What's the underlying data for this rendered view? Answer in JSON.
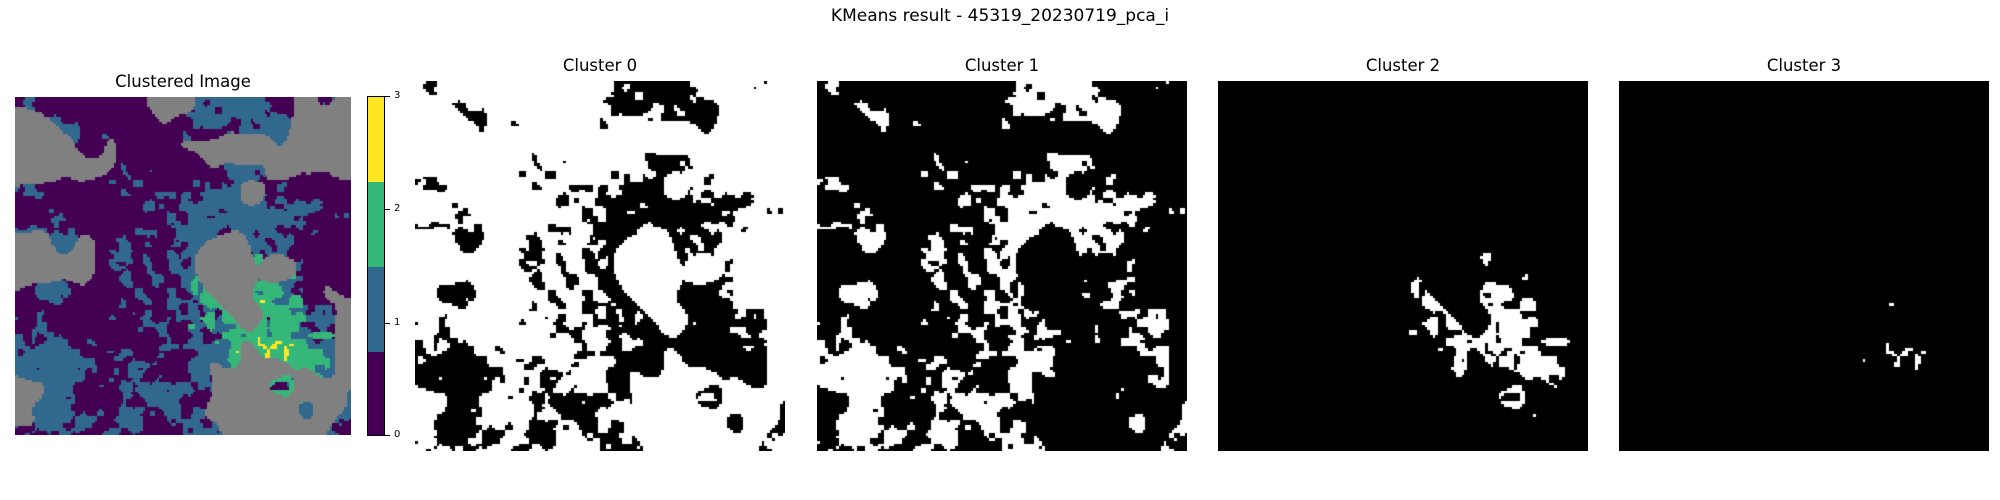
{
  "figure": {
    "suptitle": "KMeans result - 45319_20230719_pca_i"
  },
  "chart_data": {
    "type": "heatmap",
    "title": "KMeans result - 45319_20230719_pca_i",
    "panels": [
      {
        "title": "Clustered Image",
        "kind": "cluster-map",
        "colormap": "viridis-discrete"
      },
      {
        "title": "Cluster 0",
        "kind": "binary-mask",
        "cluster": 0
      },
      {
        "title": "Cluster 1",
        "kind": "binary-mask",
        "cluster": 1
      },
      {
        "title": "Cluster 2",
        "kind": "binary-mask",
        "cluster": 2
      },
      {
        "title": "Cluster 3",
        "kind": "binary-mask",
        "cluster": 3
      }
    ],
    "colorbar": {
      "ticks": [
        "0",
        "1",
        "2",
        "3"
      ],
      "range": [
        0,
        3
      ],
      "levels": [
        {
          "cluster": 0,
          "color": "#440154"
        },
        {
          "cluster": 1,
          "color": "#31688e"
        },
        {
          "cluster": 2,
          "color": "#35b779"
        },
        {
          "cluster": 3,
          "color": "#fde725"
        }
      ]
    },
    "nodata_color": "#808080",
    "mask_colors": {
      "member": "#ffffff",
      "other": "#000000"
    }
  }
}
